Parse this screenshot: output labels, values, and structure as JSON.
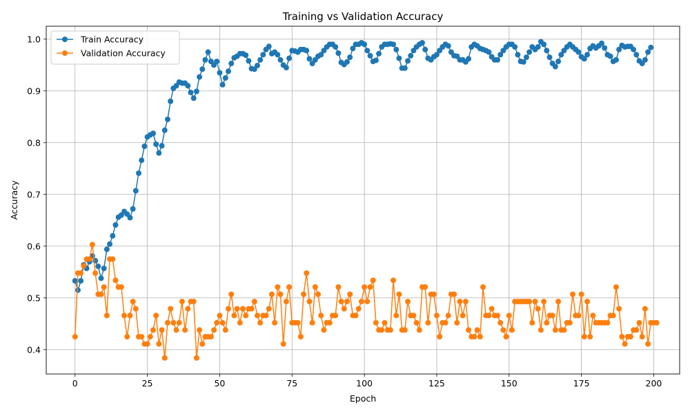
{
  "chart_data": {
    "type": "line",
    "title": "Training vs Validation Accuracy",
    "xlabel": "Epoch",
    "ylabel": "Accuracy",
    "xlim": [
      -9.95,
      208.95
    ],
    "ylim": [
      0.353,
      1.025
    ],
    "xticks": [
      0,
      25,
      50,
      75,
      100,
      125,
      150,
      175,
      200
    ],
    "yticks": [
      0.4,
      0.5,
      0.6,
      0.7,
      0.8,
      0.9,
      1.0
    ],
    "ytick_labels": [
      "0.4",
      "0.5",
      "0.6",
      "0.7",
      "0.8",
      "0.9",
      "1.0"
    ],
    "grid": true,
    "legend_position": "upper-left",
    "series": [
      {
        "name": "Train Accuracy",
        "color": "#1f77b4",
        "marker": "circle",
        "values": [
          0.533,
          0.515,
          0.533,
          0.564,
          0.557,
          0.57,
          0.581,
          0.572,
          0.561,
          0.538,
          0.557,
          0.594,
          0.604,
          0.62,
          0.641,
          0.656,
          0.66,
          0.667,
          0.662,
          0.655,
          0.672,
          0.707,
          0.741,
          0.766,
          0.793,
          0.811,
          0.815,
          0.818,
          0.797,
          0.78,
          0.794,
          0.824,
          0.845,
          0.88,
          0.905,
          0.91,
          0.917,
          0.915,
          0.915,
          0.91,
          0.897,
          0.886,
          0.899,
          0.927,
          0.942,
          0.96,
          0.975,
          0.957,
          0.95,
          0.957,
          0.935,
          0.912,
          0.925,
          0.938,
          0.953,
          0.964,
          0.967,
          0.972,
          0.972,
          0.969,
          0.958,
          0.943,
          0.942,
          0.949,
          0.96,
          0.97,
          0.98,
          0.986,
          0.972,
          0.975,
          0.97,
          0.96,
          0.95,
          0.945,
          0.963,
          0.978,
          0.977,
          0.975,
          0.98,
          0.98,
          0.978,
          0.962,
          0.953,
          0.96,
          0.967,
          0.97,
          0.978,
          0.985,
          0.99,
          0.99,
          0.985,
          0.973,
          0.955,
          0.951,
          0.956,
          0.965,
          0.982,
          0.99,
          0.99,
          0.993,
          0.99,
          0.978,
          0.968,
          0.957,
          0.959,
          0.972,
          0.985,
          0.99,
          0.99,
          0.991,
          0.99,
          0.98,
          0.963,
          0.944,
          0.944,
          0.958,
          0.968,
          0.978,
          0.985,
          0.99,
          0.993,
          0.98,
          0.963,
          0.96,
          0.966,
          0.97,
          0.978,
          0.985,
          0.99,
          0.987,
          0.975,
          0.968,
          0.967,
          0.96,
          0.96,
          0.956,
          0.962,
          0.985,
          0.99,
          0.987,
          0.982,
          0.98,
          0.978,
          0.975,
          0.966,
          0.96,
          0.96,
          0.97,
          0.978,
          0.985,
          0.99,
          0.99,
          0.985,
          0.97,
          0.957,
          0.956,
          0.965,
          0.975,
          0.985,
          0.98,
          0.985,
          0.995,
          0.99,
          0.978,
          0.965,
          0.953,
          0.947,
          0.957,
          0.97,
          0.978,
          0.985,
          0.99,
          0.985,
          0.98,
          0.975,
          0.966,
          0.962,
          0.97,
          0.982,
          0.987,
          0.983,
          0.987,
          0.992,
          0.983,
          0.97,
          0.967,
          0.957,
          0.96,
          0.98,
          0.988,
          0.985,
          0.986,
          0.986,
          0.98,
          0.97,
          0.958,
          0.953,
          0.96,
          0.975,
          0.984
        ]
      },
      {
        "name": "Validation Accuracy",
        "color": "#ff7f0e",
        "marker": "circle",
        "values": [
          0.425,
          0.548,
          0.548,
          0.562,
          0.575,
          0.575,
          0.603,
          0.548,
          0.507,
          0.507,
          0.521,
          0.466,
          0.575,
          0.575,
          0.534,
          0.521,
          0.521,
          0.466,
          0.425,
          0.466,
          0.493,
          0.479,
          0.425,
          0.425,
          0.411,
          0.411,
          0.425,
          0.438,
          0.466,
          0.411,
          0.438,
          0.384,
          0.452,
          0.479,
          0.452,
          0.438,
          0.452,
          0.493,
          0.438,
          0.479,
          0.493,
          0.493,
          0.384,
          0.438,
          0.411,
          0.425,
          0.425,
          0.425,
          0.438,
          0.452,
          0.466,
          0.452,
          0.438,
          0.479,
          0.507,
          0.466,
          0.479,
          0.452,
          0.479,
          0.466,
          0.479,
          0.479,
          0.493,
          0.466,
          0.452,
          0.466,
          0.466,
          0.479,
          0.507,
          0.452,
          0.521,
          0.507,
          0.411,
          0.493,
          0.521,
          0.452,
          0.452,
          0.452,
          0.425,
          0.507,
          0.548,
          0.493,
          0.452,
          0.521,
          0.507,
          0.466,
          0.438,
          0.452,
          0.452,
          0.466,
          0.466,
          0.521,
          0.493,
          0.479,
          0.493,
          0.507,
          0.466,
          0.466,
          0.479,
          0.493,
          0.521,
          0.493,
          0.521,
          0.534,
          0.452,
          0.438,
          0.438,
          0.452,
          0.438,
          0.438,
          0.534,
          0.466,
          0.507,
          0.438,
          0.438,
          0.493,
          0.466,
          0.466,
          0.452,
          0.438,
          0.521,
          0.521,
          0.452,
          0.507,
          0.507,
          0.466,
          0.425,
          0.452,
          0.452,
          0.466,
          0.507,
          0.507,
          0.452,
          0.493,
          0.466,
          0.493,
          0.438,
          0.425,
          0.425,
          0.438,
          0.425,
          0.521,
          0.466,
          0.466,
          0.479,
          0.466,
          0.466,
          0.452,
          0.438,
          0.425,
          0.466,
          0.438,
          0.493,
          0.493,
          0.493,
          0.493,
          0.493,
          0.493,
          0.452,
          0.493,
          0.479,
          0.438,
          0.493,
          0.452,
          0.466,
          0.466,
          0.438,
          0.493,
          0.438,
          0.438,
          0.452,
          0.452,
          0.507,
          0.466,
          0.466,
          0.507,
          0.425,
          0.493,
          0.425,
          0.466,
          0.452,
          0.452,
          0.452,
          0.452,
          0.452,
          0.466,
          0.466,
          0.521,
          0.479,
          0.425,
          0.411,
          0.425,
          0.425,
          0.438,
          0.438,
          0.452,
          0.425,
          0.479,
          0.411,
          0.452,
          0.452,
          0.452
        ]
      }
    ]
  }
}
